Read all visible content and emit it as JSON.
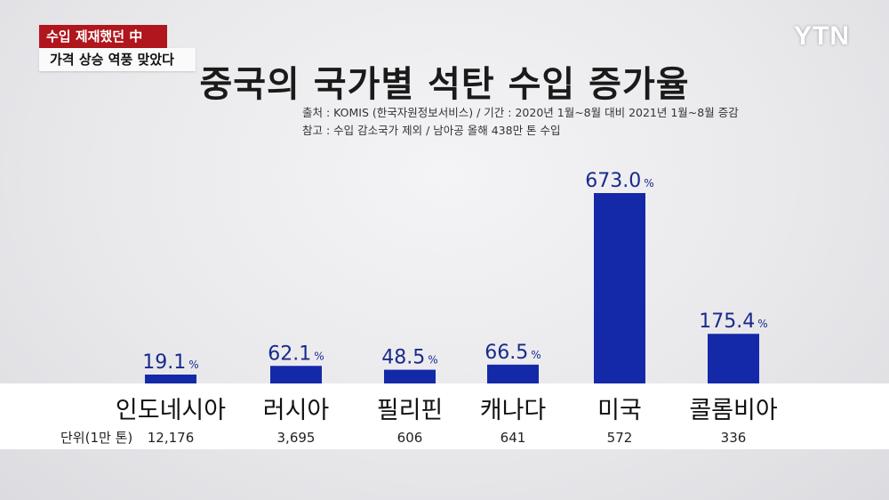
{
  "ticker": {
    "line1": "수입 제재했던 中",
    "line2": "가격 상승 역풍 맞았다"
  },
  "logo": "YTN",
  "chart_data": {
    "type": "bar",
    "title": "중국의 국가별 석탄 수입 증가율",
    "notes": [
      "출처 : KOMIS (한국자원정보서비스) / 기간 : 2020년 1월~8월 대비 2021년 1월~8월 증감",
      "참고 : 수입 감소국가 제외 / 남아공 올해 438만 톤 수입"
    ],
    "categories": [
      "인도네시아",
      "러시아",
      "필리핀",
      "캐나다",
      "미국",
      "콜롬비아"
    ],
    "values": [
      19.1,
      62.1,
      48.5,
      66.5,
      673.0,
      175.4
    ],
    "value_labels": [
      "19.1",
      "62.1",
      "48.5",
      "66.5",
      "673.0",
      "175.4"
    ],
    "value_suffix": "%",
    "secondary_label": "단위(1만 톤)",
    "secondary_values": [
      "12,176",
      "3,695",
      "606",
      "641",
      "572",
      "336"
    ],
    "bar_color": "#1429a8",
    "value_color": "#1a2a8c"
  }
}
